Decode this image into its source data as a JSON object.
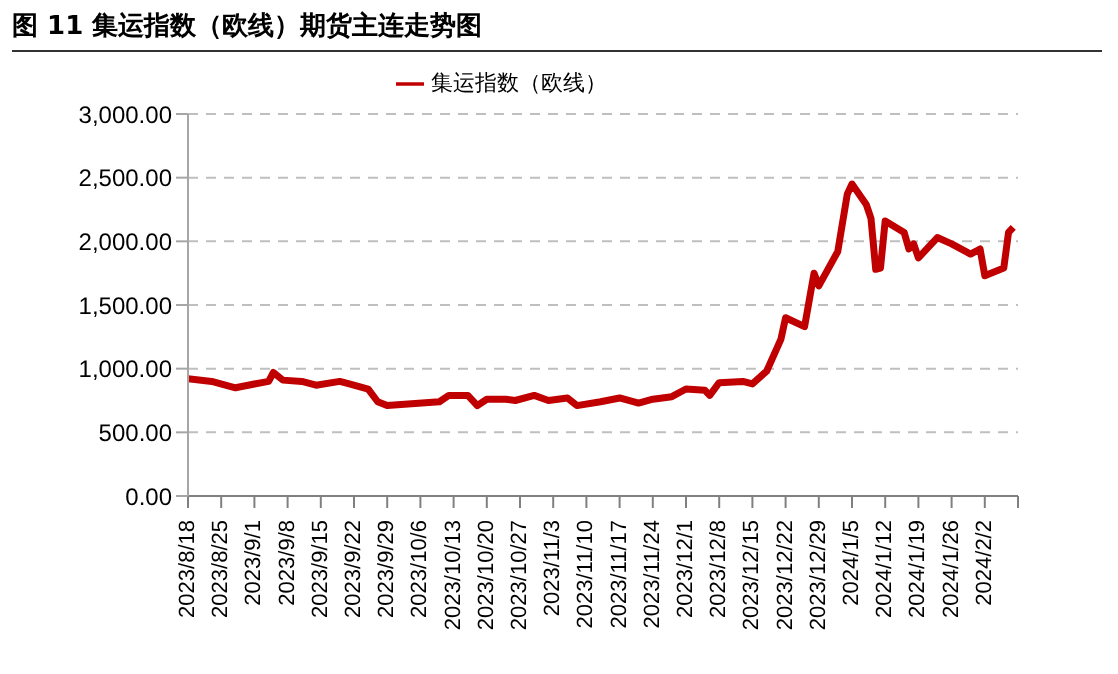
{
  "chart_data": {
    "type": "line",
    "title": "图 11  集运指数（欧线）期货主连走势图",
    "legend": "top",
    "grid": "y",
    "marker": "none",
    "line_style": "solid",
    "x": [
      "2023-08-18",
      "2023-08-23",
      "2023-08-28",
      "2023-09-01",
      "2023-09-04",
      "2023-09-05",
      "2023-09-07",
      "2023-09-11",
      "2023-09-14",
      "2023-09-19",
      "2023-09-21",
      "2023-09-25",
      "2023-09-27",
      "2023-09-29",
      "2023-10-10",
      "2023-10-12",
      "2023-10-16",
      "2023-10-18",
      "2023-10-20",
      "2023-10-24",
      "2023-10-26",
      "2023-10-30",
      "2023-11-02",
      "2023-11-06",
      "2023-11-08",
      "2023-11-13",
      "2023-11-17",
      "2023-11-21",
      "2023-11-24",
      "2023-11-28",
      "2023-12-01",
      "2023-12-05",
      "2023-12-06",
      "2023-12-08",
      "2023-12-13",
      "2023-12-15",
      "2023-12-18",
      "2023-12-21",
      "2023-12-22",
      "2023-12-26",
      "2023-12-28",
      "2023-12-29",
      "2024-01-02",
      "2024-01-04",
      "2024-01-05",
      "2024-01-08",
      "2024-01-09",
      "2024-01-10",
      "2024-01-11",
      "2024-01-12",
      "2024-01-16",
      "2024-01-17",
      "2024-01-18",
      "2024-01-19",
      "2024-01-23",
      "2024-01-26",
      "2024-01-30",
      "2024-02-01",
      "2024-02-02",
      "2024-02-06",
      "2024-02-07",
      "2024-02-08"
    ],
    "series": [
      {
        "name": "集运指数（欧线）",
        "color": "#c00000",
        "values": [
          920,
          900,
          850,
          880,
          900,
          970,
          910,
          900,
          870,
          900,
          880,
          840,
          740,
          710,
          740,
          790,
          790,
          710,
          760,
          760,
          750,
          790,
          750,
          770,
          710,
          740,
          770,
          730,
          760,
          780,
          840,
          830,
          790,
          890,
          900,
          880,
          980,
          1230,
          1400,
          1330,
          1750,
          1650,
          1920,
          2370,
          2450,
          2290,
          2180,
          1780,
          1790,
          2160,
          2070,
          1940,
          1980,
          1870,
          2030,
          1980,
          1900,
          1940,
          1730,
          1790,
          2070,
          2110
        ]
      }
    ],
    "xlim": [
      "2023-08-18",
      "2024-02-09"
    ],
    "xticks": [
      {
        "value": "2023-08-18",
        "label": "2023/8/18"
      },
      {
        "value": "2023-08-25",
        "label": "2023/8/25"
      },
      {
        "value": "2023-09-01",
        "label": "2023/9/1"
      },
      {
        "value": "2023-09-08",
        "label": "2023/9/8"
      },
      {
        "value": "2023-09-15",
        "label": "2023/9/15"
      },
      {
        "value": "2023-09-22",
        "label": "2023/9/22"
      },
      {
        "value": "2023-09-29",
        "label": "2023/9/29"
      },
      {
        "value": "2023-10-06",
        "label": "2023/10/6"
      },
      {
        "value": "2023-10-13",
        "label": "2023/10/13"
      },
      {
        "value": "2023-10-20",
        "label": "2023/10/20"
      },
      {
        "value": "2023-10-27",
        "label": "2023/10/27"
      },
      {
        "value": "2023-11-03",
        "label": "2023/11/3"
      },
      {
        "value": "2023-11-10",
        "label": "2023/11/10"
      },
      {
        "value": "2023-11-17",
        "label": "2023/11/17"
      },
      {
        "value": "2023-11-24",
        "label": "2023/11/24"
      },
      {
        "value": "2023-12-01",
        "label": "2023/12/1"
      },
      {
        "value": "2023-12-08",
        "label": "2023/12/8"
      },
      {
        "value": "2023-12-15",
        "label": "2023/12/15"
      },
      {
        "value": "2023-12-22",
        "label": "2023/12/22"
      },
      {
        "value": "2023-12-29",
        "label": "2023/12/29"
      },
      {
        "value": "2024-01-05",
        "label": "2024/1/5"
      },
      {
        "value": "2024-01-12",
        "label": "2024/1/12"
      },
      {
        "value": "2024-01-19",
        "label": "2024/1/19"
      },
      {
        "value": "2024-01-26",
        "label": "2024/1/26"
      },
      {
        "value": "2024-02-02",
        "label": "2024/2/2"
      },
      {
        "value": "2024-02-09",
        "label": null
      }
    ],
    "ylim": [
      0,
      3000
    ],
    "yticks": [
      {
        "value": 0,
        "label": "0.00"
      },
      {
        "value": 500,
        "label": "500.00"
      },
      {
        "value": 1000,
        "label": "1,000.00"
      },
      {
        "value": 1500,
        "label": "1,500.00"
      },
      {
        "value": 2000,
        "label": "2,000.00"
      },
      {
        "value": 2500,
        "label": "2,500.00"
      },
      {
        "value": 3000,
        "label": "3,000.00"
      }
    ]
  }
}
